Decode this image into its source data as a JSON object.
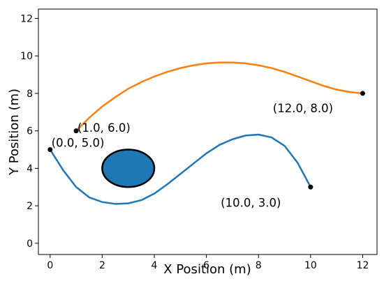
{
  "chart_data": {
    "type": "line",
    "title": "",
    "xlabel": "X Position (m)",
    "ylabel": "Y Position (m)",
    "xlim": [
      -0.45,
      12.55
    ],
    "ylim": [
      -0.6,
      12.5
    ],
    "xticks": [
      "0",
      "2",
      "4",
      "6",
      "8",
      "10",
      "12"
    ],
    "yticks": [
      "0",
      "2",
      "4",
      "6",
      "8",
      "10",
      "12"
    ],
    "grid": false,
    "series": [
      {
        "color": "#1f77b4",
        "points": [
          [
            0.0,
            5.0
          ],
          [
            0.5,
            3.9
          ],
          [
            1.0,
            3.0
          ],
          [
            1.5,
            2.45
          ],
          [
            2.0,
            2.2
          ],
          [
            2.5,
            2.1
          ],
          [
            3.0,
            2.13
          ],
          [
            3.5,
            2.3
          ],
          [
            4.0,
            2.65
          ],
          [
            4.5,
            3.15
          ],
          [
            5.0,
            3.7
          ],
          [
            5.5,
            4.25
          ],
          [
            6.0,
            4.8
          ],
          [
            6.5,
            5.25
          ],
          [
            7.0,
            5.55
          ],
          [
            7.5,
            5.75
          ],
          [
            8.0,
            5.8
          ],
          [
            8.5,
            5.65
          ],
          [
            9.0,
            5.2
          ],
          [
            9.5,
            4.3
          ],
          [
            10.0,
            3.0
          ]
        ]
      },
      {
        "color": "#ff7f0e",
        "points": [
          [
            1.0,
            6.0
          ],
          [
            1.5,
            6.7
          ],
          [
            2.0,
            7.3
          ],
          [
            2.5,
            7.8
          ],
          [
            3.0,
            8.25
          ],
          [
            3.5,
            8.6
          ],
          [
            4.0,
            8.9
          ],
          [
            4.5,
            9.15
          ],
          [
            5.0,
            9.35
          ],
          [
            5.5,
            9.5
          ],
          [
            6.0,
            9.6
          ],
          [
            6.5,
            9.65
          ],
          [
            7.0,
            9.65
          ],
          [
            7.5,
            9.6
          ],
          [
            8.0,
            9.5
          ],
          [
            8.5,
            9.35
          ],
          [
            9.0,
            9.15
          ],
          [
            9.5,
            8.9
          ],
          [
            10.0,
            8.65
          ],
          [
            10.5,
            8.4
          ],
          [
            11.0,
            8.2
          ],
          [
            11.5,
            8.07
          ],
          [
            12.0,
            8.0
          ]
        ]
      }
    ],
    "markers": [
      {
        "x": 0.0,
        "y": 5.0,
        "label": "(0.0, 5.0)",
        "label_pos": [
          0.05,
          5.15
        ]
      },
      {
        "x": 1.0,
        "y": 6.0,
        "label": "(1.0, 6.0)",
        "label_pos": [
          1.05,
          5.95
        ]
      },
      {
        "x": 10.0,
        "y": 3.0,
        "label": "(10.0, 3.0)",
        "label_pos": [
          6.55,
          1.95
        ]
      },
      {
        "x": 12.0,
        "y": 8.0,
        "label": "(12.0, 8.0)",
        "label_pos": [
          8.55,
          7.0
        ]
      }
    ],
    "obstacle": {
      "cx": 3.0,
      "cy": 4.0,
      "rx": 1.0,
      "ry": 1.0,
      "fill": "#1f77b4",
      "stroke": "#000000"
    }
  }
}
